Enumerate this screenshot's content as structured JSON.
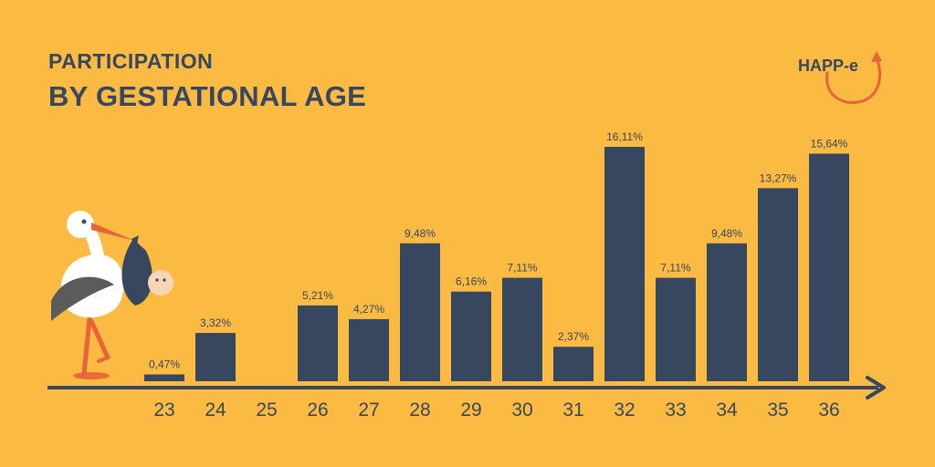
{
  "header": {
    "subtitle": "PARTICIPATION",
    "title": "BY GESTATIONAL AGE"
  },
  "logo": {
    "text": "HAPP-e"
  },
  "colors": {
    "background": "#FBBA42",
    "bar": "#37475F",
    "text": "#37475F",
    "accent": "#E8623A"
  },
  "chart_data": {
    "type": "bar",
    "title": "BY GESTATIONAL AGE",
    "subtitle": "PARTICIPATION",
    "categories": [
      "23",
      "24",
      "25",
      "26",
      "27",
      "28",
      "29",
      "30",
      "31",
      "32",
      "33",
      "34",
      "35",
      "36"
    ],
    "values": [
      0.47,
      3.32,
      0,
      5.21,
      4.27,
      9.48,
      6.16,
      7.11,
      2.37,
      16.11,
      7.11,
      9.48,
      13.27,
      15.64
    ],
    "labels": [
      "0,47%",
      "3,32%",
      "",
      "5,21%",
      "4,27%",
      "9,48%",
      "6,16%",
      "7,11%",
      "2,37%",
      "16,11%",
      "7,11%",
      "9,48%",
      "13,27%",
      "15,64%"
    ],
    "xlabel": "",
    "ylabel": "",
    "ylim": [
      0,
      16.11
    ],
    "grid": false,
    "legend": "none"
  }
}
